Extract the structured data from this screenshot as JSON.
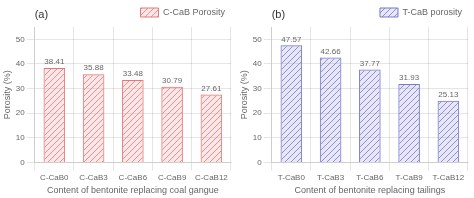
{
  "chart_data": [
    {
      "type": "bar",
      "categories": [
        "C-CaB0",
        "C-CaB3",
        "C-CaB6",
        "C-CaB9",
        "C-CaB12"
      ],
      "series": [
        {
          "name": "C-CaB Porosity",
          "color": "#e87878",
          "values": [
            38.41,
            35.88,
            33.48,
            30.79,
            27.61
          ]
        }
      ],
      "xlabel": "Content of bentonite replacing coal gangue",
      "ylabel": "Porosity (%)",
      "ylim": [
        0,
        55
      ],
      "yticks": [
        0,
        10,
        20,
        30,
        40,
        50
      ],
      "grid": true,
      "legend": "upper right",
      "data_labels": true,
      "annotations": [
        "(a)"
      ]
    },
    {
      "type": "bar",
      "categories": [
        "T-CaB0",
        "T-CaB3",
        "T-CaB6",
        "T-CaB9",
        "T-CaB12"
      ],
      "series": [
        {
          "name": "T-CaB porosity",
          "color": "#7878d0",
          "values": [
            47.57,
            42.66,
            37.77,
            31.93,
            25.13
          ]
        }
      ],
      "xlabel": "Content of bentonite replacing tailings",
      "ylabel": "Porosity (%)",
      "ylim": [
        0,
        55
      ],
      "yticks": [
        0,
        10,
        20,
        30,
        40,
        50
      ],
      "grid": true,
      "legend": "upper right",
      "data_labels": true,
      "annotations": [
        "(b)"
      ]
    }
  ]
}
